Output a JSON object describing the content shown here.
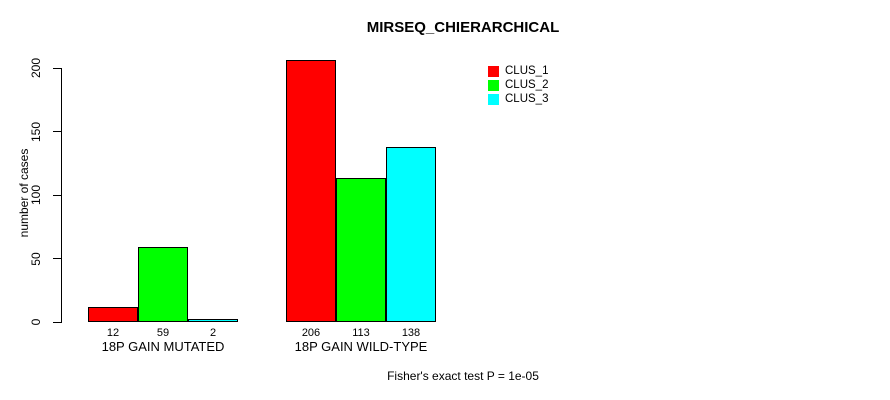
{
  "chart_data": {
    "type": "bar",
    "title": "MIRSEQ_CHIERARCHICAL",
    "xlabel": "",
    "ylabel": "number of cases",
    "ylim": [
      0,
      200
    ],
    "yticks": [
      0,
      50,
      100,
      150,
      200
    ],
    "grid": false,
    "legend_position": "top-right-inside",
    "categories": [
      "18P GAIN MUTATED",
      "18P GAIN WILD-TYPE"
    ],
    "series": [
      {
        "name": "CLUS_1",
        "color": "#ff0000",
        "values": [
          12,
          206
        ]
      },
      {
        "name": "CLUS_2",
        "color": "#00ff00",
        "values": [
          59,
          113
        ]
      },
      {
        "name": "CLUS_3",
        "color": "#00ffff",
        "values": [
          2,
          138
        ]
      }
    ],
    "bar_value_labels": true,
    "annotation": "Fisher's exact test P = 1e-05",
    "colors": {
      "background": "#ffffff",
      "axis": "#000000",
      "bar_border": "#000000"
    }
  }
}
